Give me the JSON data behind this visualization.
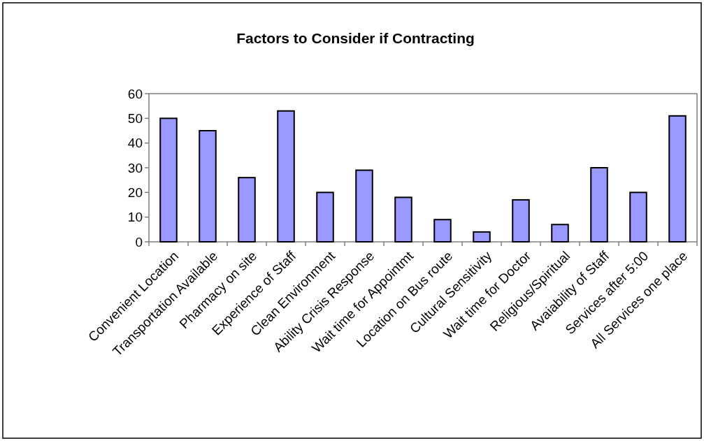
{
  "chart_data": {
    "type": "bar",
    "title": "Factors to Consider if Contracting",
    "categories": [
      "Convenient Location",
      "Transportation Available",
      "Pharmacy on site",
      "Experience of Staff",
      "Clean Environment",
      "Ability Crisis Response",
      "Wait time for Appointmt",
      "Location on Bus route",
      "Cultural Sensitivity",
      "Wait time for Doctor",
      "Religious/Spiritual",
      "Avaiability of Staff",
      "Services after 5:00",
      "All Services one place"
    ],
    "values": [
      50,
      45,
      26,
      53,
      20,
      29,
      18,
      9,
      4,
      17,
      7,
      30,
      20,
      51
    ],
    "color": "#9999ff",
    "ylim": [
      0,
      60
    ],
    "yticks": [
      0,
      10,
      20,
      30,
      40,
      50,
      60
    ],
    "grid": false
  }
}
